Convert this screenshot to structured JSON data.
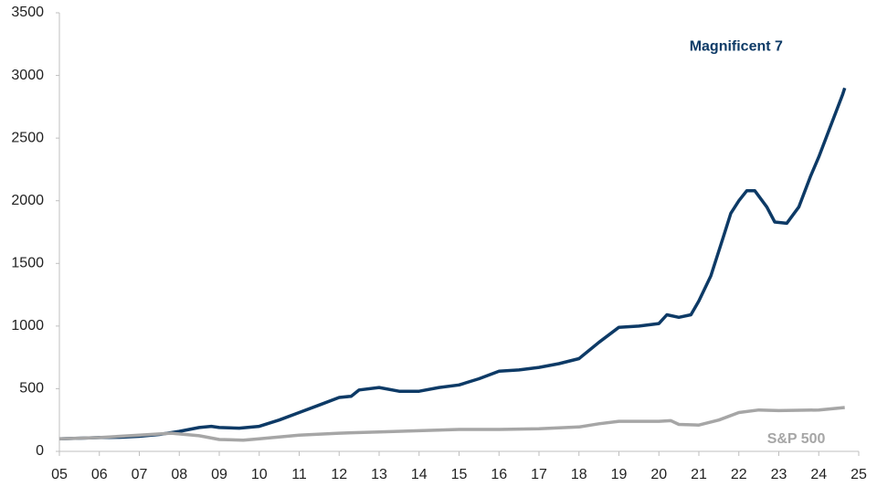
{
  "chart_data": {
    "type": "line",
    "xlim": [
      5,
      25
    ],
    "ylim": [
      0,
      3500
    ],
    "xticks": [
      {
        "value": 5,
        "label": "05"
      },
      {
        "value": 6,
        "label": "06"
      },
      {
        "value": 7,
        "label": "07"
      },
      {
        "value": 8,
        "label": "08"
      },
      {
        "value": 9,
        "label": "09"
      },
      10,
      11,
      12,
      13,
      14,
      15,
      16,
      17,
      18,
      19,
      20,
      21,
      22,
      23,
      24,
      25
    ],
    "yticks": [
      0,
      500,
      1000,
      1500,
      2000,
      2500,
      3000,
      3500
    ],
    "grid": false,
    "series": [
      {
        "name": "Magnificent 7",
        "color": "#0d3a66",
        "x": [
          5.0,
          5.5,
          6,
          6.5,
          7,
          7.5,
          8,
          8.5,
          8.8,
          9,
          9.5,
          10,
          10.5,
          11,
          11.5,
          12,
          12.3,
          12.5,
          13,
          13.5,
          14,
          14.5,
          15,
          15.5,
          16,
          16.5,
          17,
          17.5,
          18,
          18.5,
          19,
          19.5,
          20,
          20.2,
          20.5,
          20.8,
          21,
          21.3,
          21.6,
          21.8,
          22,
          22.2,
          22.4,
          22.7,
          22.9,
          23.2,
          23.5,
          23.8,
          24,
          24.3,
          24.6,
          24.65
        ],
        "values": [
          100,
          105,
          110,
          112,
          120,
          135,
          160,
          190,
          200,
          190,
          185,
          200,
          250,
          310,
          370,
          430,
          440,
          490,
          510,
          480,
          480,
          510,
          530,
          580,
          640,
          650,
          670,
          700,
          740,
          870,
          990,
          1000,
          1020,
          1090,
          1070,
          1090,
          1200,
          1400,
          1700,
          1900,
          2000,
          2080,
          2080,
          1950,
          1830,
          1820,
          1950,
          2200,
          2350,
          2600,
          2850,
          2900
        ]
      },
      {
        "name": "S&P 500",
        "color": "#a6a6a6",
        "x": [
          5,
          6,
          7,
          7.8,
          8.5,
          9,
          9.6,
          10,
          10.5,
          11,
          12,
          13,
          14,
          15,
          16,
          17,
          18,
          18.5,
          19,
          20,
          20.3,
          20.5,
          21,
          21.5,
          22,
          22.5,
          23,
          24,
          24.65
        ],
        "values": [
          100,
          110,
          130,
          145,
          125,
          95,
          90,
          100,
          115,
          130,
          145,
          155,
          165,
          175,
          175,
          180,
          195,
          220,
          240,
          240,
          245,
          215,
          210,
          250,
          310,
          330,
          325,
          330,
          350
        ]
      }
    ]
  }
}
